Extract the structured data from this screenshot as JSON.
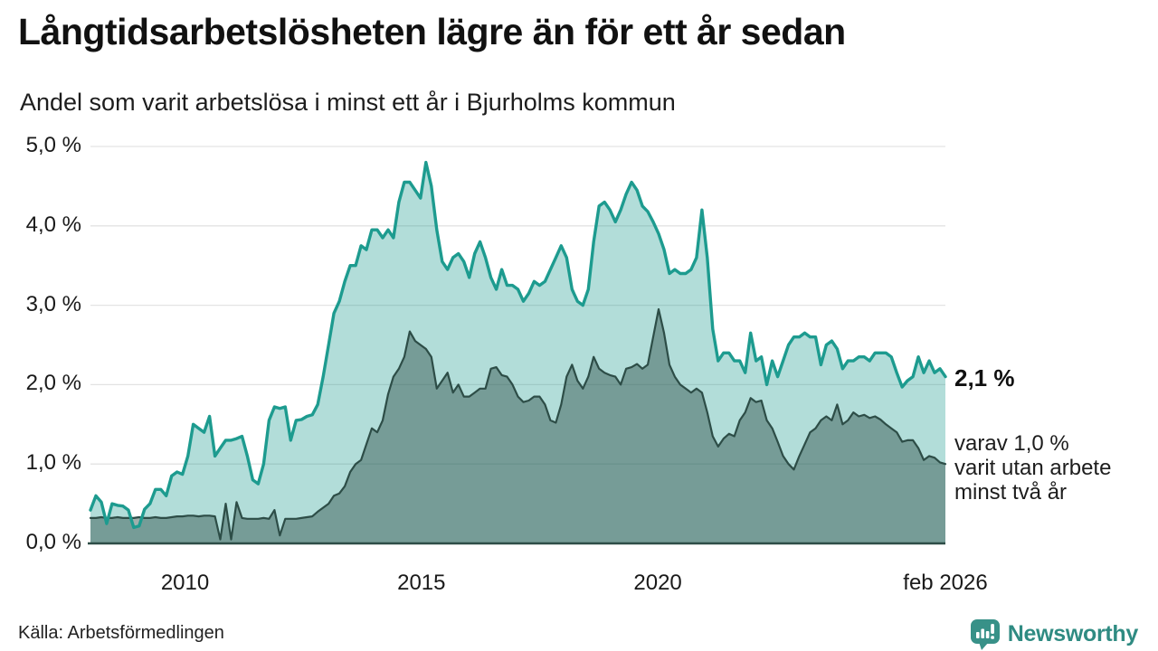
{
  "header": {
    "title": "Långtidsarbetslösheten lägre än för ett år sedan",
    "subtitle": "Andel som varit arbetslösa i minst ett år i Bjurholms kommun"
  },
  "annotations": {
    "latest_value_label": "2,1 %",
    "note_line1": "varav 1,0 %",
    "note_line2": "varit utan arbete",
    "note_line3": "minst två år"
  },
  "footer": {
    "source": "Källa: Arbetsförmedlingen",
    "brand_name": "Newsworthy"
  },
  "colors": {
    "primary_line": "#1d9b8f",
    "primary_fill": "rgba(30,156,144,0.34)",
    "secondary_line": "#2d4d47",
    "secondary_fill": "rgba(45,77,71,0.45)",
    "grid": "#e3e3e3",
    "baseline": "#2d4d47",
    "text": "#1a1a1a",
    "brand_teal": "#389188"
  },
  "chart_data": {
    "type": "area",
    "title": "Långtidsarbetslösheten lägre än för ett år sedan",
    "subtitle": "Andel som varit arbetslösa i minst ett år i Bjurholms kommun",
    "unit": "%",
    "x_range": [
      2008.0,
      2026.083
    ],
    "xlabel": "",
    "ylabel": "",
    "ylim": [
      0,
      5
    ],
    "grid": true,
    "legend_position": "none",
    "y_ticks": [
      {
        "label": "5,0 %",
        "value": 5
      },
      {
        "label": "4,0 %",
        "value": 4
      },
      {
        "label": "3,0 %",
        "value": 3
      },
      {
        "label": "2,0 %",
        "value": 2
      },
      {
        "label": "1,0 %",
        "value": 1
      },
      {
        "label": "0,0 %",
        "value": 0
      }
    ],
    "x_ticks": [
      {
        "label": "2010",
        "value": 2010
      },
      {
        "label": "2015",
        "value": 2015
      },
      {
        "label": "2020",
        "value": 2020
      },
      {
        "label": "feb 2026",
        "value": 2026.083
      }
    ],
    "series": [
      {
        "name": "Arbetslösa minst ett år",
        "color": "#1d9b8f",
        "fill": "rgba(30,156,144,0.34)",
        "latest_value": 2.1,
        "values": [
          0.42,
          0.6,
          0.52,
          0.25,
          0.5,
          0.48,
          0.47,
          0.42,
          0.2,
          0.22,
          0.43,
          0.5,
          0.68,
          0.68,
          0.6,
          0.85,
          0.9,
          0.87,
          1.1,
          1.5,
          1.45,
          1.4,
          1.6,
          1.1,
          1.2,
          1.3,
          1.3,
          1.32,
          1.35,
          1.1,
          0.8,
          0.75,
          1.0,
          1.55,
          1.72,
          1.7,
          1.72,
          1.3,
          1.55,
          1.56,
          1.6,
          1.62,
          1.75,
          2.1,
          2.5,
          2.9,
          3.05,
          3.3,
          3.5,
          3.5,
          3.75,
          3.7,
          3.95,
          3.95,
          3.85,
          3.95,
          3.85,
          4.3,
          4.55,
          4.55,
          4.45,
          4.35,
          4.8,
          4.5,
          3.95,
          3.55,
          3.45,
          3.6,
          3.65,
          3.55,
          3.35,
          3.65,
          3.8,
          3.6,
          3.35,
          3.2,
          3.45,
          3.25,
          3.25,
          3.2,
          3.05,
          3.15,
          3.3,
          3.25,
          3.3,
          3.45,
          3.6,
          3.75,
          3.6,
          3.2,
          3.05,
          3.0,
          3.2,
          3.8,
          4.25,
          4.3,
          4.2,
          4.05,
          4.2,
          4.4,
          4.55,
          4.45,
          4.25,
          4.18,
          4.05,
          3.9,
          3.7,
          3.4,
          3.45,
          3.4,
          3.4,
          3.45,
          3.6,
          4.2,
          3.6,
          2.7,
          2.3,
          2.4,
          2.4,
          2.3,
          2.3,
          2.15,
          2.65,
          2.3,
          2.35,
          2.0,
          2.3,
          2.1,
          2.3,
          2.5,
          2.6,
          2.6,
          2.65,
          2.6,
          2.6,
          2.25,
          2.5,
          2.55,
          2.45,
          2.2,
          2.3,
          2.3,
          2.35,
          2.35,
          2.3,
          2.4,
          2.4,
          2.4,
          2.35,
          2.15,
          1.97,
          2.05,
          2.1,
          2.35,
          2.15,
          2.3,
          2.15,
          2.2,
          2.1
        ]
      },
      {
        "name": "Arbetslösa minst två år",
        "color": "#2d4d47",
        "fill": "rgba(45,77,71,0.45)",
        "latest_value": 1.0,
        "values": [
          0.32,
          0.32,
          0.33,
          0.32,
          0.32,
          0.33,
          0.32,
          0.32,
          0.32,
          0.33,
          0.32,
          0.32,
          0.33,
          0.32,
          0.32,
          0.33,
          0.34,
          0.34,
          0.35,
          0.35,
          0.34,
          0.35,
          0.35,
          0.34,
          0.05,
          0.5,
          0.05,
          0.52,
          0.32,
          0.31,
          0.31,
          0.31,
          0.32,
          0.31,
          0.42,
          0.1,
          0.31,
          0.31,
          0.31,
          0.32,
          0.33,
          0.34,
          0.4,
          0.45,
          0.5,
          0.6,
          0.63,
          0.72,
          0.9,
          1.0,
          1.05,
          1.25,
          1.45,
          1.4,
          1.55,
          1.88,
          2.1,
          2.2,
          2.35,
          2.67,
          2.55,
          2.5,
          2.45,
          2.35,
          1.95,
          2.05,
          2.15,
          1.9,
          2.0,
          1.85,
          1.85,
          1.9,
          1.95,
          1.95,
          2.2,
          2.22,
          2.12,
          2.1,
          2.0,
          1.85,
          1.78,
          1.8,
          1.85,
          1.85,
          1.75,
          1.55,
          1.52,
          1.75,
          2.1,
          2.25,
          2.05,
          1.95,
          2.1,
          2.35,
          2.2,
          2.15,
          2.12,
          2.1,
          2.0,
          2.2,
          2.22,
          2.26,
          2.2,
          2.25,
          2.6,
          2.95,
          2.65,
          2.25,
          2.1,
          2.0,
          1.95,
          1.9,
          1.95,
          1.9,
          1.65,
          1.35,
          1.22,
          1.32,
          1.38,
          1.35,
          1.55,
          1.65,
          1.83,
          1.78,
          1.8,
          1.55,
          1.45,
          1.28,
          1.1,
          1.0,
          0.93,
          1.1,
          1.25,
          1.4,
          1.45,
          1.55,
          1.6,
          1.55,
          1.75,
          1.5,
          1.55,
          1.65,
          1.6,
          1.62,
          1.58,
          1.6,
          1.56,
          1.5,
          1.45,
          1.4,
          1.28,
          1.3,
          1.3,
          1.2,
          1.05,
          1.1,
          1.08,
          1.02,
          1.0
        ]
      }
    ]
  }
}
